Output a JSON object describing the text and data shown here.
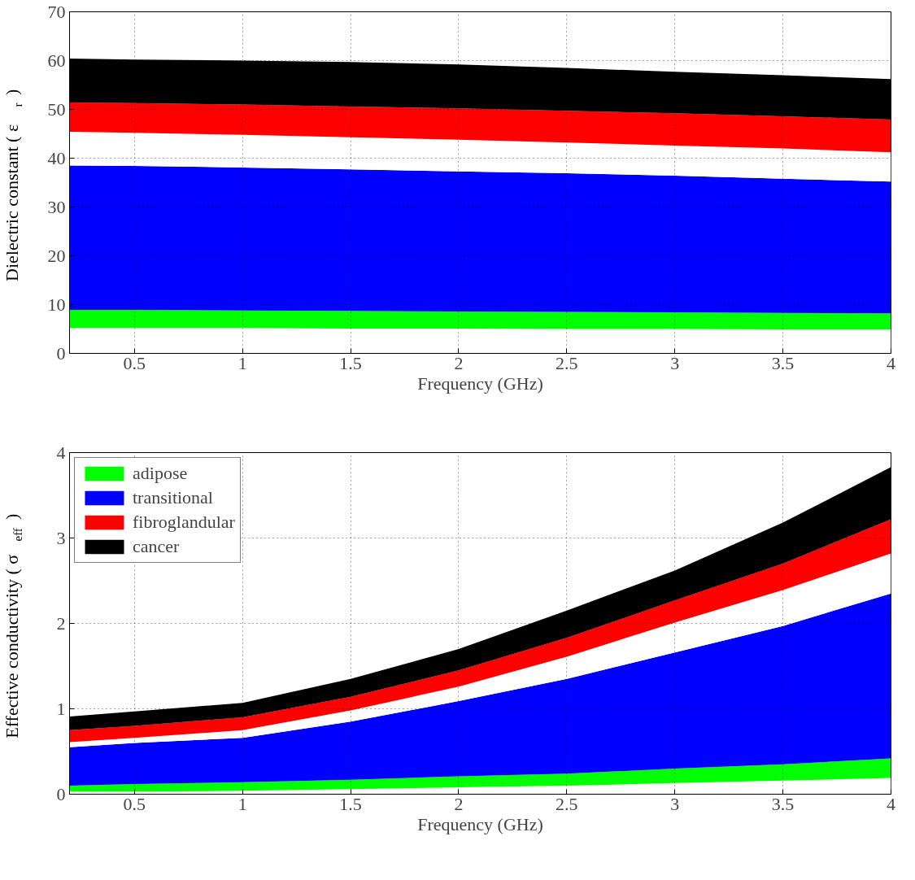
{
  "chart_data": [
    {
      "type": "area",
      "stacked": true,
      "xlabel": "Frequency (GHz)",
      "ylabel": "Dielectric constant ( ε$_{r}$ )",
      "xlim": [
        0.2,
        4
      ],
      "ylim": [
        0,
        70
      ],
      "xticks": [
        0.5,
        1,
        1.5,
        2,
        2.5,
        3,
        3.5,
        4
      ],
      "yticks": [
        0,
        10,
        20,
        30,
        40,
        50,
        60,
        70
      ],
      "grid": true,
      "legend": false,
      "x": [
        0.2,
        0.5,
        1,
        1.5,
        2,
        2.5,
        3,
        3.5,
        4
      ],
      "series": [
        {
          "color": "#ffffff",
          "values": [
            5.2,
            5.2,
            5.2,
            5.1,
            5.1,
            5.0,
            5.0,
            4.9,
            4.9
          ]
        },
        {
          "color": "#00ff00",
          "values": [
            3.7,
            3.7,
            3.6,
            3.6,
            3.5,
            3.5,
            3.4,
            3.4,
            3.3
          ]
        },
        {
          "color": "#0000ff",
          "values": [
            29.6,
            29.5,
            29.3,
            29.0,
            28.7,
            28.4,
            28.0,
            27.5,
            27.0
          ]
        },
        {
          "color": "#ffffff",
          "values": [
            6.9,
            6.8,
            6.7,
            6.6,
            6.5,
            6.3,
            6.2,
            6.2,
            6.0
          ]
        },
        {
          "color": "#ff0000",
          "values": [
            6.0,
            6.1,
            6.2,
            6.3,
            6.4,
            6.5,
            6.6,
            6.6,
            6.7
          ]
        },
        {
          "color": "#000000",
          "values": [
            9.0,
            8.9,
            9.0,
            9.1,
            9.0,
            8.8,
            8.5,
            8.4,
            8.3
          ]
        }
      ]
    },
    {
      "type": "area",
      "stacked": true,
      "xlabel": "Frequency (GHz)",
      "ylabel": "Effective conductivity ( σ$_{eff}$ )",
      "xlim": [
        0.2,
        4
      ],
      "ylim": [
        0,
        4
      ],
      "xticks": [
        0.5,
        1,
        1.5,
        2,
        2.5,
        3,
        3.5,
        4
      ],
      "yticks": [
        0,
        1,
        2,
        3,
        4
      ],
      "grid": true,
      "legend": "top left",
      "x": [
        0.2,
        0.5,
        1,
        1.5,
        2,
        2.5,
        3,
        3.5,
        4
      ],
      "series": [
        {
          "color": "#ffffff",
          "values": [
            0.03,
            0.03,
            0.04,
            0.06,
            0.08,
            0.1,
            0.13,
            0.16,
            0.19
          ]
        },
        {
          "name": "adipose",
          "color": "#00ff00",
          "values": [
            0.07,
            0.09,
            0.1,
            0.11,
            0.13,
            0.14,
            0.17,
            0.19,
            0.23
          ]
        },
        {
          "name": "transitional",
          "color": "#0000ff",
          "values": [
            0.45,
            0.48,
            0.52,
            0.68,
            0.88,
            1.11,
            1.36,
            1.62,
            1.93
          ]
        },
        {
          "color": "#ffffff",
          "values": [
            0.06,
            0.06,
            0.09,
            0.13,
            0.17,
            0.26,
            0.35,
            0.42,
            0.47
          ]
        },
        {
          "name": "fibroglandular",
          "color": "#ff0000",
          "values": [
            0.14,
            0.14,
            0.15,
            0.16,
            0.19,
            0.22,
            0.26,
            0.31,
            0.4
          ]
        },
        {
          "name": "cancer",
          "color": "#000000",
          "values": [
            0.16,
            0.17,
            0.17,
            0.21,
            0.25,
            0.32,
            0.35,
            0.48,
            0.61
          ]
        }
      ]
    }
  ]
}
